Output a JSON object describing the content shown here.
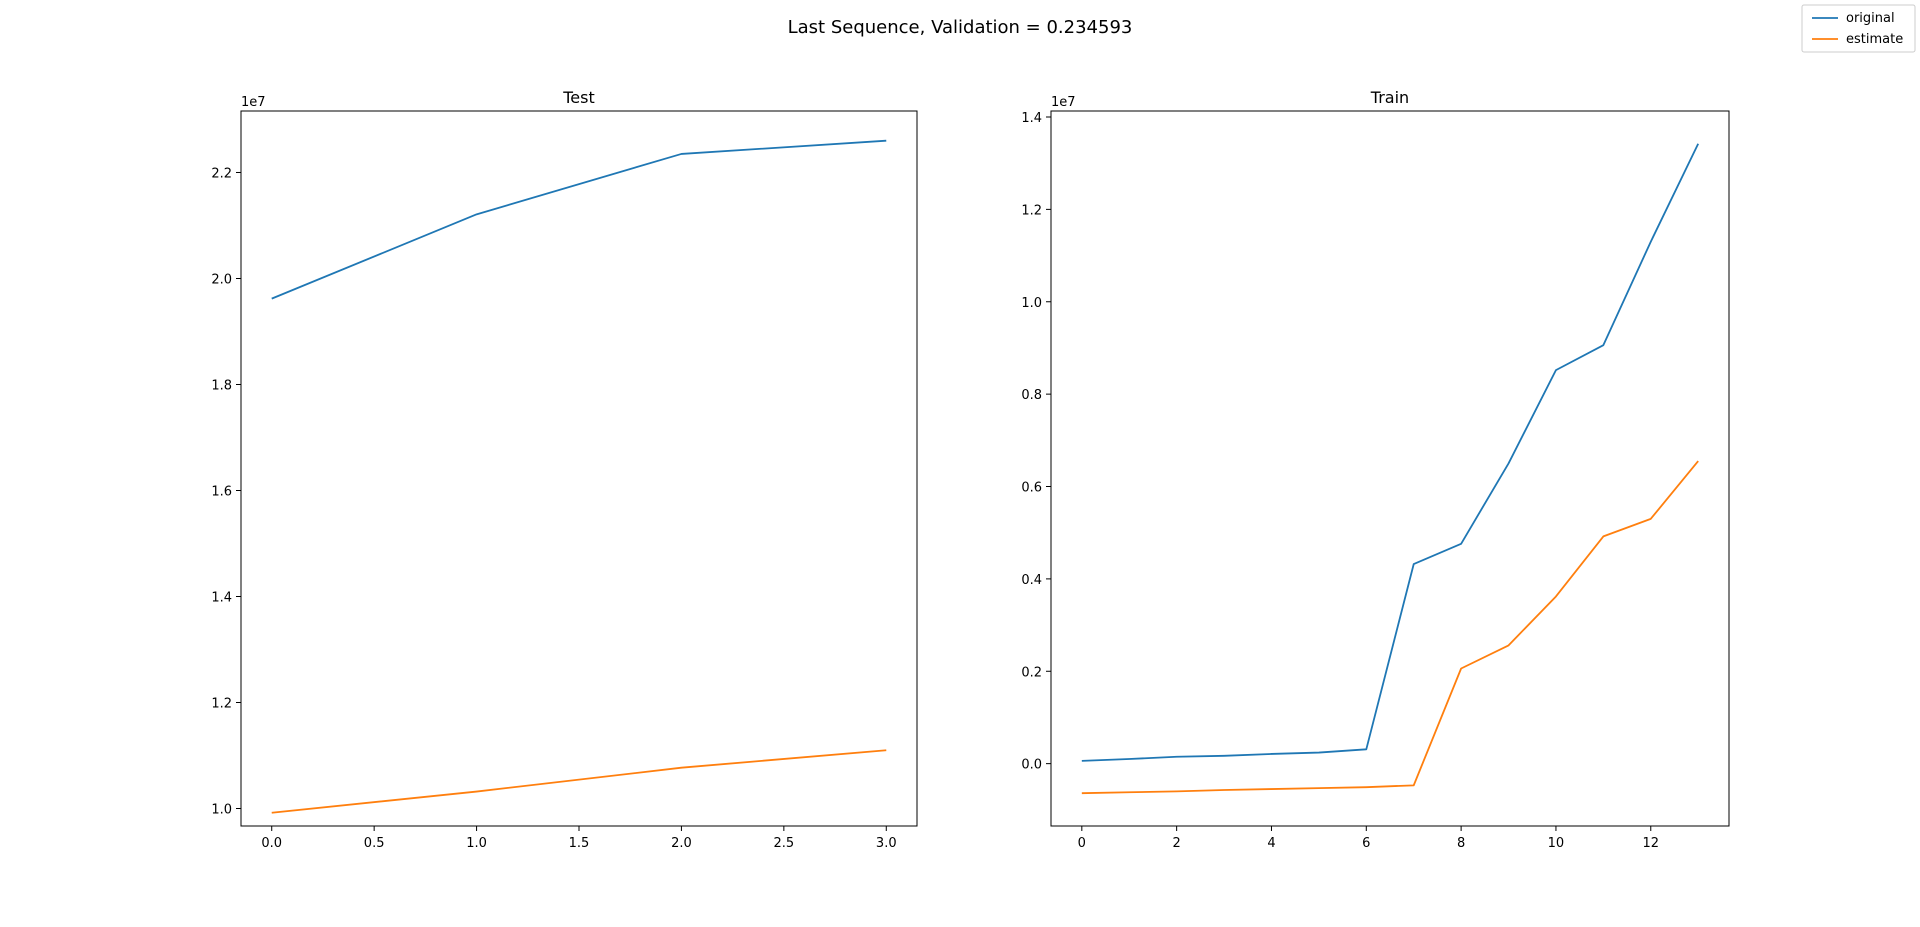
{
  "figure": {
    "suptitle": "Last Sequence, Validation = 0.234593",
    "legend": {
      "placement": "top-right",
      "entries": [
        {
          "name": "original",
          "color": "#1f77b4"
        },
        {
          "name": "estimate",
          "color": "#ff7f0e"
        }
      ]
    }
  },
  "chart_data": [
    {
      "type": "line",
      "title": "Test",
      "xlabel": "",
      "ylabel": "",
      "offset_label": "1e7",
      "xlim": [
        -0.15,
        3.15
      ],
      "ylim": [
        9670000.0,
        23160000.0
      ],
      "xticks": [
        0,
        0.5,
        1,
        1.5,
        2,
        2.5,
        3
      ],
      "xtick_labels": [
        "0.0",
        "0.5",
        "1.0",
        "1.5",
        "2.0",
        "2.5",
        "3.0"
      ],
      "yticks": [
        10000000.0,
        12000000.0,
        14000000.0,
        16000000.0,
        18000000.0,
        20000000.0,
        22000000.0
      ],
      "ytick_labels": [
        "1.0",
        "1.2",
        "1.4",
        "1.6",
        "1.8",
        "2.0",
        "2.2"
      ],
      "x": [
        0,
        1,
        2,
        3
      ],
      "series": [
        {
          "name": "original",
          "color": "#1f77b4",
          "values": [
            19620000,
            21210000,
            22350000,
            22600000
          ]
        },
        {
          "name": "estimate",
          "color": "#ff7f0e",
          "values": [
            9920000,
            10320000,
            10770000,
            11100000
          ]
        }
      ],
      "grid": false
    },
    {
      "type": "line",
      "title": "Train",
      "xlabel": "",
      "ylabel": "",
      "offset_label": "1e7",
      "xlim": [
        -0.65,
        13.65
      ],
      "ylim": [
        -1350000.0,
        14130000.0
      ],
      "xticks": [
        0,
        2,
        4,
        6,
        8,
        10,
        12
      ],
      "xtick_labels": [
        "0",
        "2",
        "4",
        "6",
        "8",
        "10",
        "12"
      ],
      "yticks": [
        0,
        2000000.0,
        4000000.0,
        6000000.0,
        8000000.0,
        10000000.0,
        12000000.0,
        14000000.0
      ],
      "ytick_labels": [
        "0.0",
        "0.2",
        "0.4",
        "0.6",
        "0.8",
        "1.0",
        "1.2",
        "1.4"
      ],
      "x": [
        0,
        1,
        2,
        3,
        4,
        5,
        6,
        7,
        8,
        9,
        10,
        11,
        12,
        13
      ],
      "series": [
        {
          "name": "original",
          "color": "#1f77b4",
          "values": [
            60000,
            100000,
            150000,
            170000,
            210000,
            240000,
            310000,
            4320000,
            4760000,
            6500000,
            8520000,
            9060000,
            11300000,
            13420000
          ]
        },
        {
          "name": "estimate",
          "color": "#ff7f0e",
          "values": [
            -640000,
            -620000,
            -600000,
            -570000,
            -550000,
            -530000,
            -510000,
            -470000,
            2060000,
            2560000,
            3620000,
            4920000,
            5300000,
            6550000
          ]
        }
      ],
      "grid": false
    }
  ]
}
